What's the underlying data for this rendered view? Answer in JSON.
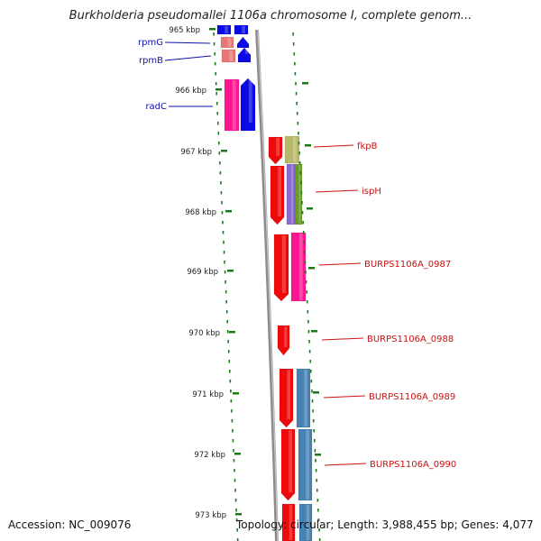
{
  "title": "Burkholderia pseudomallei 1106a chromosome I, complete genom...",
  "footer": {
    "accession": "Accession: NC_009076",
    "topology": "Topology: circular; Length: 3,988,455 bp; Genes: 4,077"
  },
  "colors": {
    "backbone": "#8c8c8c",
    "tick": "#1a7a1a",
    "label_left": "#1010b0",
    "label_right": "#cc1111",
    "gene_blue": "#0a0ae6",
    "gene_pink": "#ff1493",
    "gene_salmon": "#e87878",
    "gene_red": "#ee0a0a",
    "gene_olive": "#b8b86a",
    "gene_purple": "#8a6ad0",
    "gene_green": "#6a9a2a",
    "gene_steel": "#4682b4"
  },
  "kbp_labels": [
    "965 kbp",
    "966 kbp",
    "967 kbp",
    "968 kbp",
    "969 kbp",
    "970 kbp",
    "971 kbp",
    "972 kbp",
    "973 kbp"
  ],
  "gene_labels_left": [
    "rpmG",
    "rpmB",
    "radC"
  ],
  "gene_labels_right": [
    "fkpB",
    "ispH",
    "BURPS1106A_0987",
    "BURPS1106A_0988",
    "BURPS1106A_0989",
    "BURPS1106A_0990"
  ]
}
